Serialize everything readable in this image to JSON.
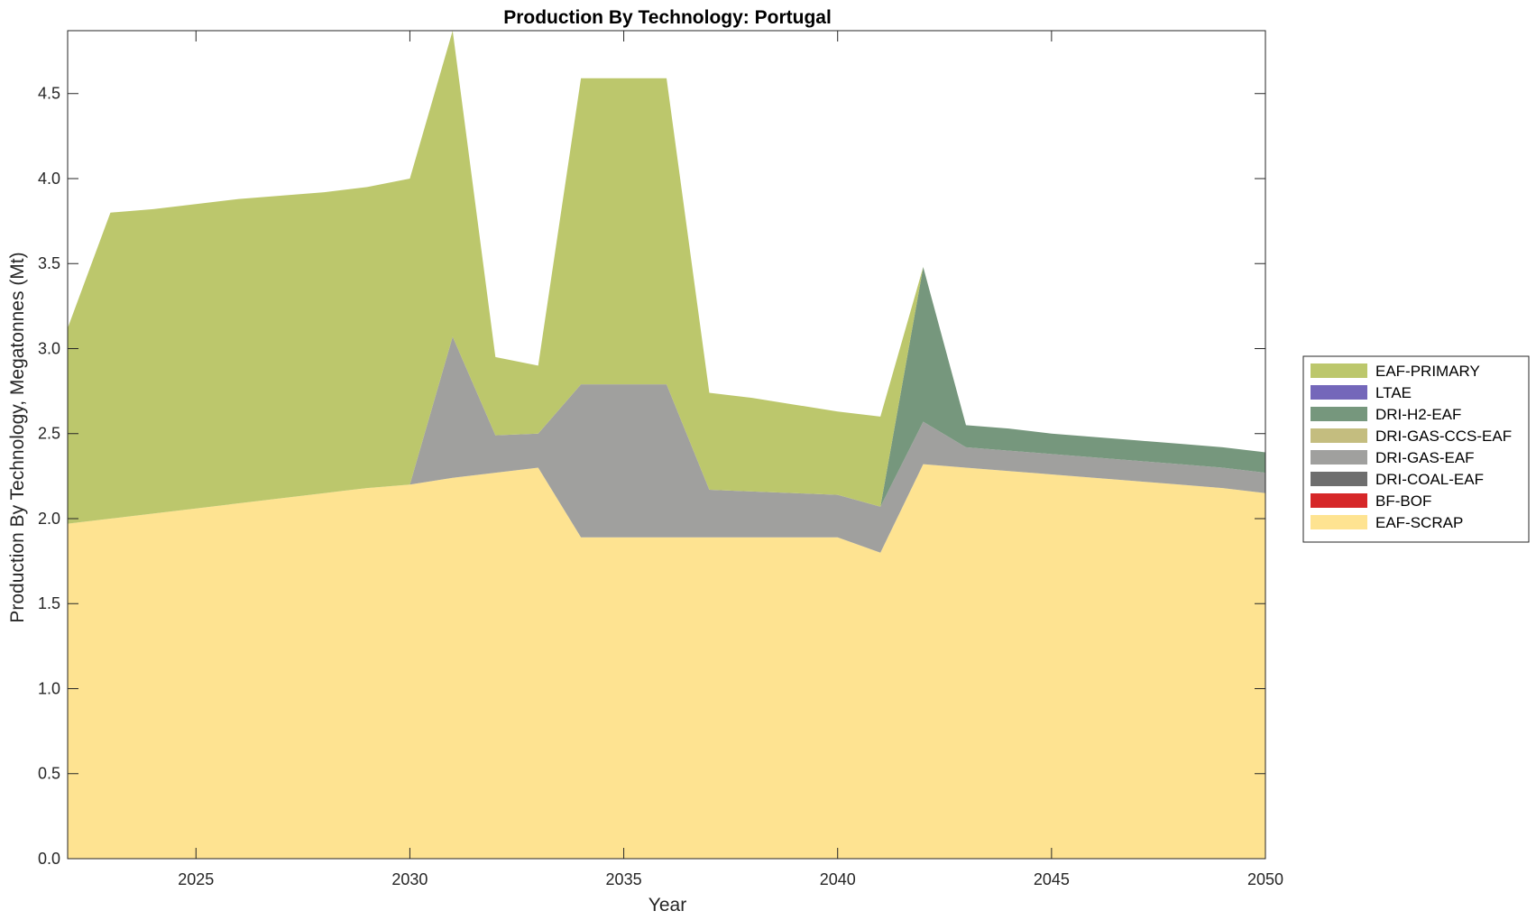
{
  "chart_data": {
    "type": "area",
    "title": "Production By Technology: Portugal",
    "xlabel": "Year",
    "ylabel": "Production By Technology, Megatonnes (Mt)",
    "xlim": [
      2022,
      2050
    ],
    "ylim": [
      0,
      4.87
    ],
    "xticks": [
      2025,
      2030,
      2035,
      2040,
      2045,
      2050
    ],
    "yticks": [
      0.0,
      0.5,
      1.0,
      1.5,
      2.0,
      2.5,
      3.0,
      3.5,
      4.0,
      4.5
    ],
    "ytick_labels": [
      "0.0",
      "0.5",
      "1.0",
      "1.5",
      "2.0",
      "2.5",
      "3.0",
      "3.5",
      "4.0",
      "4.5"
    ],
    "grid": false,
    "legend_position": "right",
    "stacked": true,
    "x": [
      2022,
      2023,
      2024,
      2025,
      2026,
      2027,
      2028,
      2029,
      2030,
      2031,
      2032,
      2033,
      2034,
      2035,
      2036,
      2037,
      2038,
      2039,
      2040,
      2041,
      2042,
      2043,
      2044,
      2045,
      2046,
      2047,
      2048,
      2049,
      2050
    ],
    "series": [
      {
        "name": "EAF-SCRAP",
        "color": "#FEE391",
        "values": [
          1.97,
          2.0,
          2.03,
          2.06,
          2.09,
          2.12,
          2.15,
          2.18,
          2.2,
          2.24,
          2.27,
          2.3,
          1.89,
          1.89,
          1.89,
          1.89,
          1.89,
          1.89,
          1.89,
          1.8,
          2.32,
          2.3,
          2.28,
          2.26,
          2.24,
          2.22,
          2.2,
          2.18,
          2.15
        ]
      },
      {
        "name": "BF-BOF",
        "color": "#D62728",
        "values": [
          0,
          0,
          0,
          0,
          0,
          0,
          0,
          0,
          0,
          0,
          0,
          0,
          0,
          0,
          0,
          0,
          0,
          0,
          0,
          0,
          0,
          0,
          0,
          0,
          0,
          0,
          0,
          0,
          0
        ]
      },
      {
        "name": "DRI-COAL-EAF",
        "color": "#6E6E6E",
        "values": [
          0,
          0,
          0,
          0,
          0,
          0,
          0,
          0,
          0,
          0,
          0,
          0,
          0,
          0,
          0,
          0,
          0,
          0,
          0,
          0,
          0,
          0,
          0,
          0,
          0,
          0,
          0,
          0,
          0
        ]
      },
      {
        "name": "DRI-GAS-EAF",
        "color": "#A0A09E",
        "values": [
          0,
          0,
          0,
          0,
          0,
          0,
          0,
          0,
          0,
          0.83,
          0.22,
          0.2,
          0.9,
          0.9,
          0.9,
          0.28,
          0.27,
          0.26,
          0.25,
          0.27,
          0.25,
          0.12,
          0.12,
          0.12,
          0.12,
          0.12,
          0.12,
          0.12,
          0.12
        ]
      },
      {
        "name": "DRI-GAS-CCS-EAF",
        "color": "#C4BD7F",
        "values": [
          0,
          0,
          0,
          0,
          0,
          0,
          0,
          0,
          0,
          0,
          0,
          0,
          0,
          0,
          0,
          0,
          0,
          0,
          0,
          0,
          0,
          0,
          0,
          0,
          0,
          0,
          0,
          0,
          0
        ]
      },
      {
        "name": "DRI-H2-EAF",
        "color": "#76977D",
        "values": [
          0,
          0,
          0,
          0,
          0,
          0,
          0,
          0,
          0,
          0,
          0,
          0,
          0,
          0,
          0,
          0,
          0,
          0,
          0,
          0,
          0.91,
          0.13,
          0.13,
          0.12,
          0.12,
          0.12,
          0.12,
          0.12,
          0.12
        ]
      },
      {
        "name": "LTAE",
        "color": "#7467BA",
        "values": [
          0,
          0,
          0,
          0,
          0,
          0,
          0,
          0,
          0,
          0,
          0,
          0,
          0,
          0,
          0,
          0,
          0,
          0,
          0,
          0,
          0,
          0,
          0,
          0,
          0,
          0,
          0,
          0,
          0
        ]
      },
      {
        "name": "EAF-PRIMARY",
        "color": "#BCC76C",
        "values": [
          1.15,
          1.8,
          1.79,
          1.79,
          1.79,
          1.78,
          1.77,
          1.77,
          1.8,
          1.8,
          0.46,
          0.4,
          1.8,
          1.8,
          1.8,
          0.57,
          0.55,
          0.52,
          0.49,
          0.53,
          0,
          0,
          0,
          0,
          0,
          0,
          0,
          0,
          0
        ]
      }
    ],
    "legend_order": [
      "EAF-PRIMARY",
      "LTAE",
      "DRI-H2-EAF",
      "DRI-GAS-CCS-EAF",
      "DRI-GAS-EAF",
      "DRI-COAL-EAF",
      "BF-BOF",
      "EAF-SCRAP"
    ]
  }
}
